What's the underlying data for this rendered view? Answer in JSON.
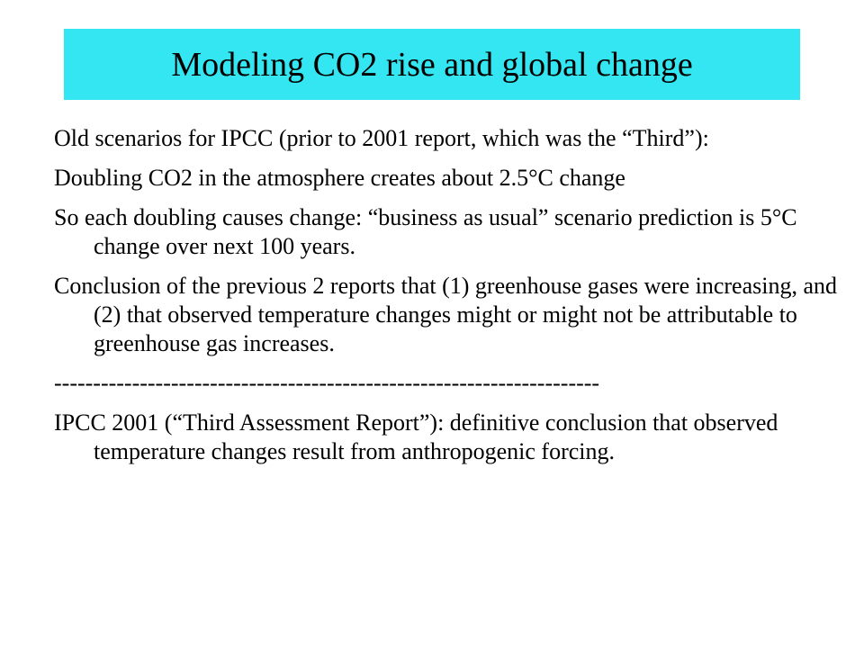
{
  "title": "Modeling CO2 rise and global change",
  "paragraphs": [
    "Old scenarios for IPCC (prior to 2001 report, which was the “Third”):",
    "Doubling CO2 in the atmosphere creates about 2.5°C change",
    "So each doubling causes change: “business as usual” scenario prediction is 5°C change over next 100 years.",
    "Conclusion of the previous 2 reports that (1) greenhouse gases were increasing, and (2) that observed temperature changes might or might not be attributable to greenhouse gas increases.",
    "----------------------------------------------------------------------",
    "IPCC 2001 (“Third Assessment Report”): definitive conclusion that observed temperature changes result from anthropogenic forcing."
  ],
  "colors": {
    "title_background": "#33e6f2",
    "text": "#000000",
    "page_background": "#ffffff"
  }
}
